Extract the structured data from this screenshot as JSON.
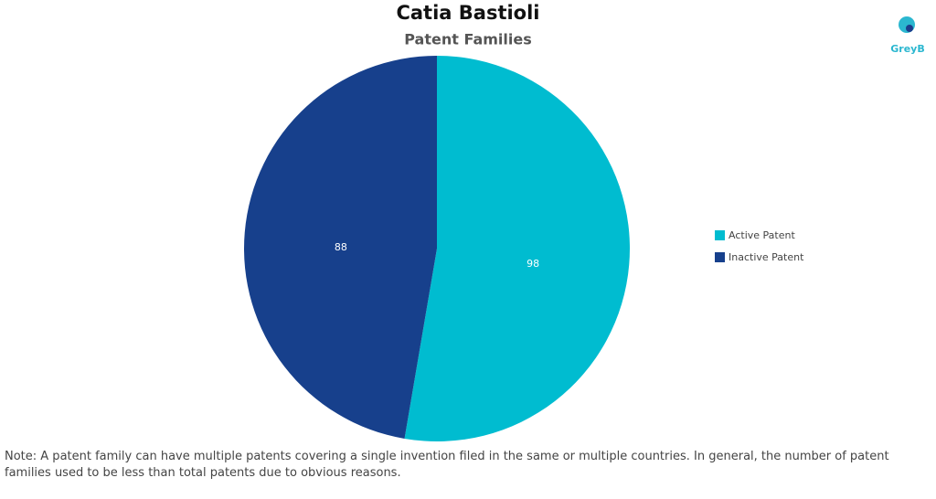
{
  "chart_data": {
    "type": "pie",
    "title": "Catia Bastioli",
    "subtitle": "Patent Families",
    "logo": "GreyB",
    "categories": [
      "Active Patent",
      "Inactive Patent"
    ],
    "values": [
      98,
      88
    ],
    "colors": [
      "#00bcd0",
      "#17408c"
    ],
    "legend": "right",
    "note": "Note: A patent family can have multiple patents covering a single invention filed in the same or multiple countries. In general, the number of patent families used to be less than total patents due to obvious reasons."
  }
}
